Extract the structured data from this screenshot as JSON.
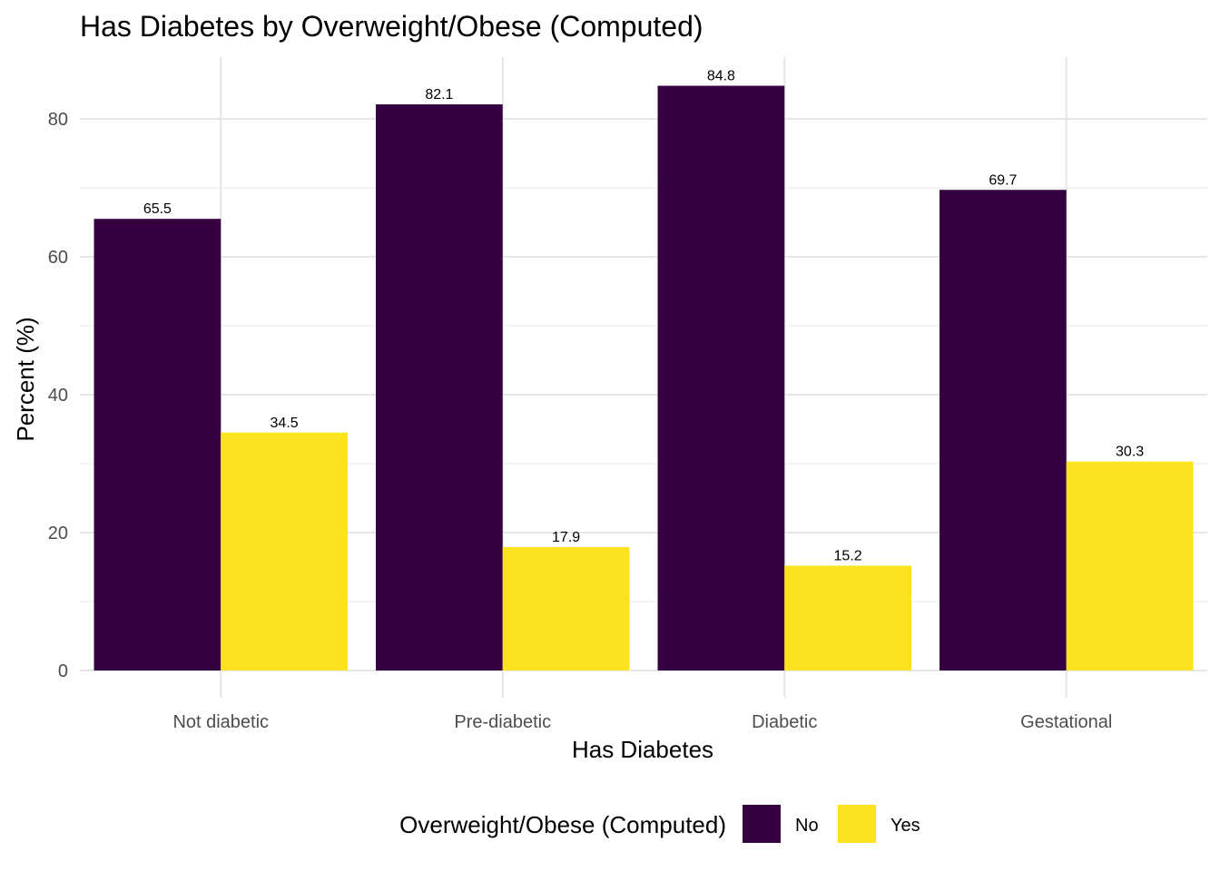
{
  "chart_data": {
    "type": "bar",
    "title": "Has Diabetes by Overweight/Obese (Computed)",
    "xlabel": "Has Diabetes",
    "ylabel": "Percent (%)",
    "categories": [
      "Not diabetic",
      "Pre-diabetic",
      "Diabetic",
      "Gestational"
    ],
    "series": [
      {
        "name": "No",
        "color": "#35003F",
        "values": [
          65.5,
          82.1,
          84.8,
          69.7
        ],
        "labels": [
          "65.5",
          "82.1",
          "84.8",
          "69.7"
        ]
      },
      {
        "name": "Yes",
        "color": "#FDE220",
        "values": [
          34.5,
          17.9,
          15.2,
          30.3
        ],
        "labels": [
          "34.5",
          "17.9",
          "15.2",
          "30.3"
        ]
      }
    ],
    "ylim": [
      0,
      89
    ],
    "yticks": [
      0,
      20,
      40,
      60,
      80
    ],
    "grid": true,
    "legend": {
      "title": "Overweight/Obese (Computed)",
      "position": "bottom"
    }
  }
}
